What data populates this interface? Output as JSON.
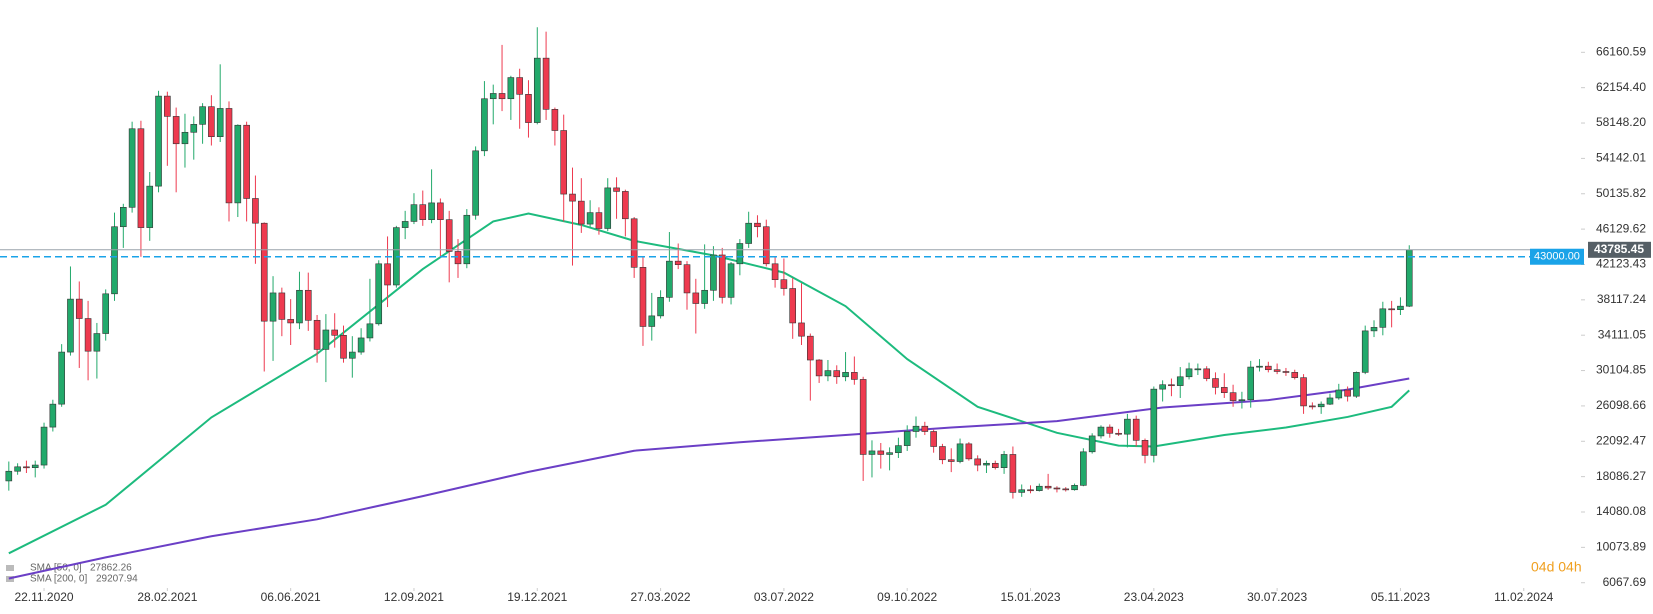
{
  "chart_data": {
    "type": "candlestick",
    "up_color": "#22a96b",
    "down_color": "#ee3a4f",
    "open": [
      17600,
      18700,
      19200,
      19100,
      19400,
      23700,
      26300,
      32200,
      38200,
      36000,
      32300,
      34300,
      38800,
      46400,
      48600,
      57500,
      46300,
      51000,
      61200,
      58900,
      55800,
      57100,
      58000,
      60000,
      56600,
      59800,
      49100,
      57900,
      49600,
      46800,
      35700,
      38900,
      35900,
      35500,
      39200,
      35800,
      32500,
      34700,
      34100,
      31500,
      32200,
      33800,
      35400,
      42200,
      39800,
      46300,
      47000,
      48900,
      47200,
      49100,
      47200,
      43600,
      42200,
      47700,
      55000,
      60900,
      61500,
      60900,
      63300,
      61400,
      58200,
      65500,
      59700,
      57300,
      50100,
      49300,
      46700,
      48000,
      46200,
      50800,
      50400,
      47300,
      41800,
      35100,
      36300,
      38400,
      42500,
      42100,
      38900,
      37700,
      39200,
      43200,
      38400,
      42200,
      44500,
      46800,
      46400,
      42200,
      40400,
      39400,
      35500,
      34000,
      31300,
      29500,
      30100,
      29400,
      29900,
      29100,
      20600,
      21000,
      20600,
      20800,
      21600,
      23200,
      23800,
      23200,
      21500,
      20000,
      19800,
      21800,
      20100,
      19400,
      19600,
      19100,
      20600,
      16300,
      16600,
      16500,
      17000,
      16800,
      16700,
      16600,
      17100,
      20900,
      22700,
      23700,
      23000,
      22900,
      24600,
      22200,
      20500,
      28000,
      28500,
      28400,
      29400,
      30300,
      30300,
      29200,
      28200,
      27600,
      26700,
      26800,
      30500,
      30600,
      30200,
      30000,
      29900,
      29300,
      26100,
      26000,
      26300,
      27000,
      27900,
      27200,
      29900,
      34600,
      35000,
      37100,
      37000,
      37400
    ],
    "high": [
      19800,
      19600,
      19900,
      19900,
      24200,
      26800,
      33100,
      41900,
      40200,
      38000,
      35500,
      39300,
      48000,
      49000,
      58300,
      58400,
      52600,
      61800,
      61700,
      59900,
      59200,
      58900,
      60400,
      61300,
      64800,
      60600,
      58000,
      58300,
      52200,
      46900,
      40800,
      39500,
      38200,
      41300,
      41200,
      36400,
      36500,
      36600,
      35200,
      34000,
      34900,
      40500,
      42600,
      45300,
      46500,
      48200,
      50200,
      50500,
      52900,
      49600,
      48200,
      45000,
      48400,
      55500,
      62900,
      62500,
      67000,
      63500,
      64300,
      63000,
      69000,
      68500,
      59900,
      59100,
      53100,
      51900,
      49400,
      48600,
      51900,
      52000,
      50600,
      47500,
      43000,
      38900,
      39200,
      45800,
      44500,
      42500,
      40500,
      44400,
      44200,
      44000,
      42400,
      45000,
      48100,
      47700,
      47200,
      43000,
      42800,
      40600,
      40000,
      34300,
      31400,
      31300,
      30700,
      32200,
      31700,
      29400,
      22200,
      21900,
      21400,
      22500,
      23900,
      24900,
      24300,
      23400,
      21800,
      21300,
      22400,
      22000,
      20500,
      19900,
      19900,
      21000,
      21500,
      17200,
      17100,
      17300,
      18400,
      17000,
      16900,
      17300,
      21300,
      23000,
      23900,
      24000,
      23500,
      25200,
      25000,
      22400,
      28300,
      29000,
      29200,
      30500,
      31000,
      30900,
      30600,
      29900,
      29800,
      28500,
      27700,
      31200,
      31400,
      31100,
      30900,
      30400,
      30200,
      29700,
      26500,
      26600,
      27500,
      28600,
      28300,
      30000,
      35200,
      35800,
      37900,
      38000,
      38400,
      44300
    ],
    "low": [
      16500,
      18300,
      18500,
      18000,
      19000,
      23200,
      26000,
      31800,
      30400,
      29000,
      29200,
      33500,
      38000,
      44000,
      48000,
      43000,
      44800,
      50300,
      53300,
      50300,
      53100,
      54000,
      55800,
      55600,
      56000,
      47000,
      47500,
      47000,
      42200,
      30000,
      31200,
      34000,
      33000,
      34800,
      34600,
      31000,
      28800,
      32700,
      31000,
      29300,
      31900,
      33400,
      35200,
      37300,
      39500,
      45000,
      46700,
      46500,
      46800,
      42900,
      40100,
      40600,
      41700,
      47200,
      54400,
      58000,
      59500,
      58500,
      57500,
      56500,
      58000,
      58500,
      55600,
      47000,
      42000,
      45700,
      46300,
      45500,
      45900,
      47300,
      45300,
      40600,
      32900,
      33500,
      36000,
      37900,
      41600,
      37000,
      34300,
      37100,
      38000,
      37700,
      37600,
      40900,
      44000,
      45200,
      41900,
      39500,
      38600,
      33700,
      33000,
      26700,
      28700,
      28900,
      28600,
      28900,
      28500,
      17600,
      18000,
      19000,
      18800,
      20200,
      21000,
      22500,
      22800,
      20800,
      19500,
      18600,
      19600,
      19900,
      18700,
      18500,
      18900,
      18400,
      15600,
      15800,
      16200,
      16400,
      16600,
      16300,
      16400,
      16500,
      17000,
      20700,
      22400,
      22500,
      22700,
      21400,
      21500,
      19600,
      19700,
      26600,
      27200,
      27000,
      29100,
      29600,
      28900,
      27400,
      27000,
      26000,
      25800,
      25900,
      30000,
      29900,
      29700,
      29500,
      29100,
      25200,
      25700,
      25200,
      26200,
      26800,
      26600,
      27000,
      29700,
      33900,
      34100,
      35000,
      36400,
      37300
    ],
    "close": [
      18700,
      19200,
      19100,
      19400,
      23700,
      26300,
      32200,
      38200,
      36000,
      32300,
      34300,
      38800,
      46400,
      48600,
      57500,
      46300,
      51000,
      61200,
      58900,
      55800,
      57100,
      58000,
      60000,
      56600,
      59800,
      49100,
      57900,
      49600,
      46800,
      35700,
      38900,
      35900,
      35500,
      39200,
      35800,
      32500,
      34700,
      34100,
      31500,
      32200,
      33800,
      35400,
      42200,
      39800,
      46300,
      47000,
      48900,
      47200,
      49100,
      47200,
      43600,
      42200,
      47700,
      55000,
      60900,
      61500,
      60900,
      63300,
      61400,
      58200,
      65500,
      59700,
      57300,
      50100,
      49300,
      46700,
      48000,
      46200,
      50800,
      50400,
      47300,
      41800,
      35100,
      36300,
      38400,
      42500,
      42100,
      38900,
      37700,
      39200,
      43200,
      38400,
      42200,
      44500,
      46800,
      46400,
      42200,
      40400,
      39400,
      35500,
      34000,
      31300,
      29500,
      30100,
      29400,
      29900,
      29100,
      20600,
      21000,
      20600,
      20800,
      21600,
      23200,
      23800,
      23200,
      21500,
      20000,
      19800,
      21800,
      20100,
      19400,
      19600,
      19100,
      20600,
      16300,
      16600,
      16500,
      17000,
      16800,
      16700,
      16600,
      17100,
      20900,
      22700,
      23700,
      23000,
      22900,
      24600,
      22200,
      20500,
      28000,
      28500,
      28400,
      29400,
      30300,
      30300,
      29200,
      28200,
      27600,
      26700,
      26800,
      30500,
      30600,
      30200,
      30000,
      29900,
      29300,
      26100,
      26000,
      26300,
      27000,
      27900,
      27200,
      29900,
      34600,
      35000,
      37100,
      37000,
      37400,
      43785.45
    ],
    "lines": [
      {
        "name": "SMA [50, 0]",
        "color": "#1dbb7e",
        "x": [
          0,
          11,
          23,
          35,
          47,
          55,
          59,
          65,
          71,
          80,
          88,
          95,
          102,
          110,
          119,
          126,
          130,
          138,
          145,
          152,
          157,
          159
        ],
        "values": [
          9400,
          14900,
          24800,
          32000,
          41600,
          47000,
          47900,
          46600,
          44800,
          43150,
          41200,
          37400,
          31400,
          26000,
          23050,
          21600,
          21500,
          22800,
          23650,
          24850,
          26000,
          27862.26
        ]
      },
      {
        "name": "SMA [200, 0]",
        "color": "#6b3fc6",
        "x": [
          0,
          11,
          23,
          35,
          47,
          59,
          71,
          83,
          95,
          107,
          119,
          131,
          143,
          152,
          159
        ],
        "values": [
          6550,
          8940,
          11330,
          13250,
          15880,
          18630,
          21020,
          21980,
          22810,
          23650,
          24370,
          25920,
          26760,
          27950,
          29207.94
        ]
      }
    ],
    "alert_line": {
      "value": 43000,
      "value_label": "43000.00",
      "color": "#1aa3e8"
    },
    "price_line_color": "#9aa3ab",
    "countdown": "04d 04h",
    "xlim": [
      -1,
      178.5
    ],
    "xticks": [
      {
        "value": 4,
        "label": "22.11.2020"
      },
      {
        "value": 18,
        "label": "28.02.2021"
      },
      {
        "value": 32,
        "label": "06.06.2021"
      },
      {
        "value": 46,
        "label": "12.09.2021"
      },
      {
        "value": 60,
        "label": "19.12.2021"
      },
      {
        "value": 74,
        "label": "27.03.2022"
      },
      {
        "value": 88,
        "label": "03.07.2022"
      },
      {
        "value": 102,
        "label": "09.10.2022"
      },
      {
        "value": 116,
        "label": "15.01.2023"
      },
      {
        "value": 130,
        "label": "23.04.2023"
      },
      {
        "value": 144,
        "label": "30.07.2023"
      },
      {
        "value": 158,
        "label": "05.11.2023"
      },
      {
        "value": 172,
        "label": "11.02.2024"
      }
    ],
    "ylim": [
      5470,
      72087
    ],
    "yticks": [
      6067.69,
      10073.89,
      14080.08,
      18086.27,
      22092.47,
      26098.66,
      30104.85,
      34111.05,
      38117.24,
      42123.43,
      46129.62,
      50135.82,
      54142.01,
      {
        "value": 58148.2,
        "label": "58148.20"
      },
      {
        "value": 62154.4,
        "label": "62154.40"
      },
      66160.59
    ]
  }
}
